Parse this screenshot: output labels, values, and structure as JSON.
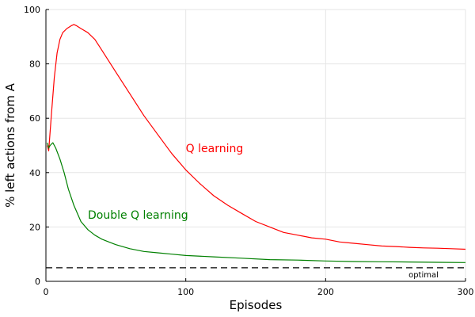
{
  "chart_data": {
    "type": "line",
    "title": "",
    "xlabel": "Episodes",
    "ylabel": "% left actions from A",
    "xlim": [
      0,
      300
    ],
    "ylim": [
      0,
      100
    ],
    "xticks": [
      0,
      100,
      200,
      300
    ],
    "yticks": [
      0,
      20,
      40,
      60,
      80,
      100
    ],
    "grid": true,
    "legend": "none",
    "series": [
      {
        "name": "Q learning",
        "color": "#ff0000",
        "x": [
          1,
          2,
          4,
          6,
          8,
          10,
          12,
          15,
          18,
          20,
          22,
          25,
          30,
          35,
          40,
          45,
          50,
          60,
          70,
          80,
          90,
          100,
          110,
          120,
          130,
          140,
          150,
          160,
          170,
          180,
          190,
          200,
          210,
          220,
          230,
          240,
          250,
          260,
          270,
          280,
          290,
          300
        ],
        "y": [
          50,
          48,
          62,
          75,
          84,
          89,
          91.5,
          93,
          94,
          94.5,
          94,
          93,
          91.5,
          89,
          85,
          81,
          77,
          69,
          61,
          54,
          47,
          41,
          36,
          31.5,
          28,
          25,
          22,
          20,
          18,
          17,
          16,
          15.5,
          14.5,
          14,
          13.5,
          13,
          12.8,
          12.5,
          12.3,
          12.2,
          12,
          11.8
        ]
      },
      {
        "name": "Double Q learning",
        "color": "#008000",
        "x": [
          1,
          2,
          3,
          5,
          7,
          10,
          13,
          16,
          20,
          25,
          30,
          35,
          40,
          45,
          50,
          60,
          70,
          80,
          90,
          100,
          120,
          140,
          160,
          180,
          200,
          220,
          240,
          260,
          280,
          300
        ],
        "y": [
          51,
          49,
          50,
          51,
          49,
          45,
          40,
          34,
          28,
          22,
          19,
          17,
          15.5,
          14.5,
          13.5,
          12,
          11,
          10.5,
          10,
          9.5,
          9,
          8.5,
          8,
          7.8,
          7.5,
          7.3,
          7.2,
          7.1,
          7,
          6.9
        ]
      }
    ],
    "reference_line": {
      "y": 5,
      "style": "dashed",
      "color": "#000000",
      "label": "optimal"
    },
    "annotations": [
      {
        "text": "Q learning",
        "series": 0,
        "x": 100,
        "y": 49
      },
      {
        "text": "Double Q learning",
        "series": 1,
        "x": 30,
        "y": 24.5
      }
    ]
  }
}
